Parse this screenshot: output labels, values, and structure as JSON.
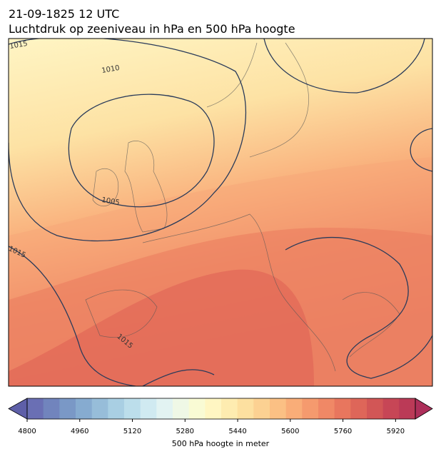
{
  "header": {
    "date": "21-09-1825 12 UTC",
    "title": "Luchtdruk op zeeniveau in hPa en 500 hPa hoogte"
  },
  "contour_labels": [
    "1015",
    "1010",
    "1005",
    "1015",
    "1015"
  ],
  "colorbar": {
    "range": [
      4800,
      5980
    ],
    "ticks": [
      4800,
      4960,
      5120,
      5280,
      5440,
      5600,
      5760,
      5920
    ],
    "label": "500 hPa hoogte in meter",
    "colors": [
      "#6a6fb4",
      "#7184bd",
      "#7a98c6",
      "#86abd0",
      "#97bdd9",
      "#a9cfe3",
      "#bcdeeb",
      "#d0eaf1",
      "#e2f3f2",
      "#eff8e6",
      "#f9fbd4",
      "#fff6c2",
      "#feecb0",
      "#fde0a0",
      "#fcd192",
      "#fbc084",
      "#f9ad78",
      "#f59a6e",
      "#f08866",
      "#e8765e",
      "#de6659",
      "#d25656",
      "#c74656",
      "#bb3a57"
    ]
  }
}
